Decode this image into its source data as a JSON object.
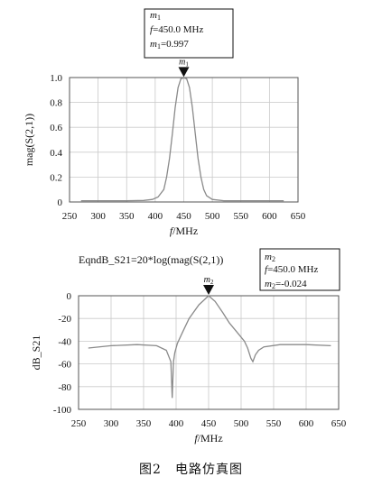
{
  "caption": "图2　电路仿真图",
  "chart_data": [
    {
      "type": "line",
      "title": "",
      "xlabel_var": "f",
      "xlabel_unit": "/MHz",
      "ylabel": "mag(S(2,1))",
      "xlim": [
        250,
        650
      ],
      "ylim": [
        0,
        1.0
      ],
      "xticks": [
        "250",
        "300",
        "350",
        "400",
        "450",
        "500",
        "550",
        "600",
        "650"
      ],
      "yticks": [
        "0",
        "0.2",
        "0.4",
        "0.6",
        "0.8",
        "1.0"
      ],
      "grid": true,
      "series": [
        {
          "x": [
            270,
            300,
            350,
            380,
            395,
            405,
            415,
            420,
            425,
            430,
            435,
            440,
            445,
            450,
            455,
            460,
            465,
            470,
            475,
            480,
            485,
            490,
            500,
            520,
            550,
            600,
            625
          ],
          "y": [
            0.01,
            0.01,
            0.01,
            0.012,
            0.02,
            0.04,
            0.1,
            0.2,
            0.35,
            0.55,
            0.76,
            0.92,
            0.99,
            0.997,
            0.99,
            0.92,
            0.76,
            0.55,
            0.35,
            0.2,
            0.1,
            0.05,
            0.02,
            0.01,
            0.01,
            0.01,
            0.01
          ]
        }
      ],
      "marker": {
        "name": "m",
        "sub": "1",
        "x": 450.0,
        "y": 0.997,
        "freq_label": "=450.0  MHz",
        "value_label": "=0.997"
      }
    },
    {
      "type": "line",
      "title": "EqndB_S21=20*log(mag(S(2,1))",
      "xlabel_var": "f",
      "xlabel_unit": "/MHz",
      "ylabel": "dB_S21",
      "xlim": [
        250,
        650
      ],
      "ylim": [
        -100,
        0
      ],
      "xticks": [
        "250",
        "300",
        "350",
        "400",
        "450",
        "500",
        "550",
        "600",
        "650"
      ],
      "yticks": [
        "0",
        "-20",
        "-40",
        "-60",
        "-80",
        "-100"
      ],
      "grid": true,
      "series": [
        {
          "x": [
            265,
            300,
            340,
            370,
            385,
            392,
            394,
            396,
            398,
            402,
            410,
            420,
            435,
            450,
            460,
            472,
            482,
            495,
            505,
            510,
            515,
            518,
            522,
            527,
            535,
            560,
            600,
            638
          ],
          "y": [
            -46,
            -44,
            -43,
            -44,
            -48,
            -58,
            -90,
            -58,
            -50,
            -42,
            -32,
            -20,
            -8,
            -0.024,
            -5,
            -15,
            -24,
            -33,
            -40,
            -46,
            -55,
            -58,
            -52,
            -48,
            -45,
            -43,
            -43,
            -44
          ]
        }
      ],
      "marker": {
        "name": "m",
        "sub": "2",
        "x": 450.0,
        "y": -0.024,
        "freq_label": "=450.0  MHz",
        "value_label": "=-0.024"
      }
    }
  ]
}
